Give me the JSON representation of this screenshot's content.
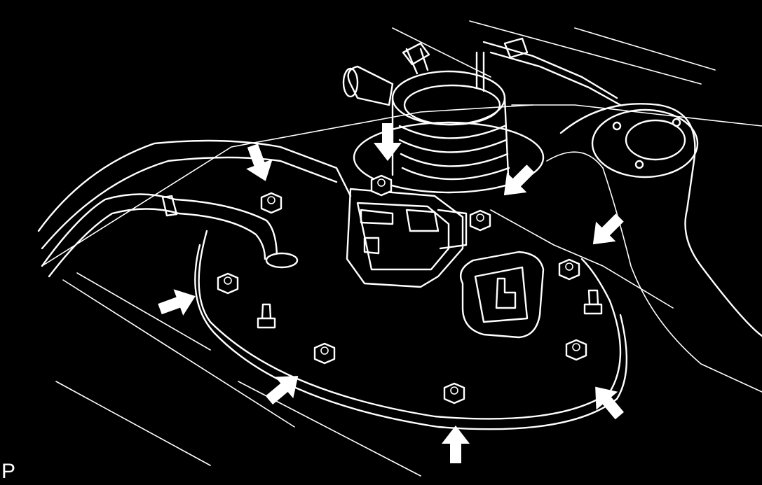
{
  "figure": {
    "corner_label": "P",
    "colors": {
      "background": "#000000",
      "lines": "#ffffff"
    },
    "parts": [
      "fuel-pump-cover-plate",
      "retaining-nut",
      "stud-bolt",
      "fuel-hose",
      "fuel-pump-connector",
      "sender-gauge-connector",
      "filler-hose-boot",
      "indicator-arrow"
    ],
    "indicated_nuts": 8
  }
}
